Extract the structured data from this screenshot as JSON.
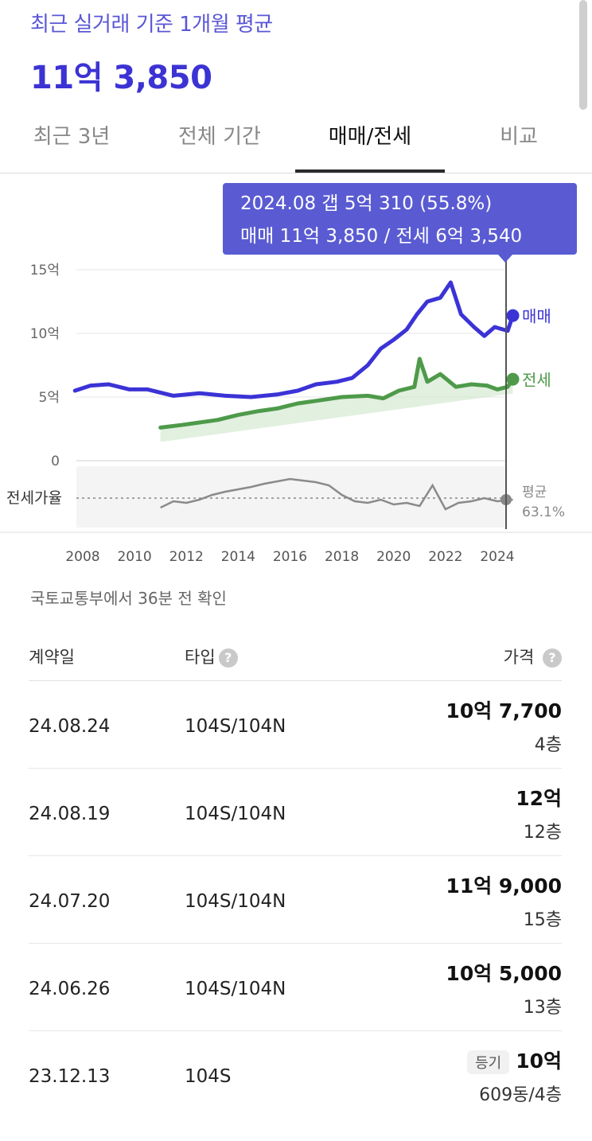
{
  "header": {
    "subtitle": "최근 실거래 기준 1개월 평균",
    "price": "11억 3,850"
  },
  "tabs": [
    {
      "label": "최근 3년",
      "active": false
    },
    {
      "label": "전체 기간",
      "active": false
    },
    {
      "label": "매매/전세",
      "active": true
    },
    {
      "label": "비교",
      "active": false
    }
  ],
  "tooltip": {
    "line1": "2024.08  갭 5억 310 (55.8%)",
    "line2": "매매 11억 3,850 / 전세 6억 3,540"
  },
  "colors": {
    "sale": "#3b33d6",
    "jeonse": "#4e9a4a",
    "ratio": "#8a8a8a",
    "tooltip": "#5a5bd2"
  },
  "chart_data": {
    "type": "line",
    "x_ticks": [
      "2008",
      "2010",
      "2012",
      "2014",
      "2016",
      "2018",
      "2020",
      "2022",
      "2024"
    ],
    "y_ticks": [
      "15억",
      "10억",
      "5억",
      "0"
    ],
    "ylim": [
      0,
      15
    ],
    "y_unit": "억",
    "ratio_label": "전세가율",
    "ratio_avg_label": "평균",
    "ratio_avg_value": "63.1%",
    "series": [
      {
        "name": "매매",
        "x": [
          2007.7,
          2008.3,
          2009.0,
          2009.8,
          2010.5,
          2011.5,
          2012.5,
          2013.5,
          2014.5,
          2015.5,
          2016.3,
          2017.0,
          2017.8,
          2018.4,
          2019.0,
          2019.5,
          2020.0,
          2020.5,
          2020.9,
          2021.3,
          2021.8,
          2022.2,
          2022.6,
          2023.1,
          2023.5,
          2023.9,
          2024.4,
          2024.6
        ],
        "values": [
          5.5,
          5.9,
          6.0,
          5.6,
          5.6,
          5.1,
          5.3,
          5.1,
          5.0,
          5.2,
          5.5,
          6.0,
          6.2,
          6.5,
          7.5,
          8.8,
          9.5,
          10.3,
          11.5,
          12.5,
          12.8,
          14.0,
          11.5,
          10.5,
          9.8,
          10.5,
          10.2,
          11.4
        ]
      },
      {
        "name": "전세",
        "x": [
          2011.0,
          2011.8,
          2012.5,
          2013.2,
          2014.0,
          2014.8,
          2015.5,
          2016.3,
          2017.0,
          2018.0,
          2019.0,
          2019.6,
          2020.2,
          2020.8,
          2021.0,
          2021.3,
          2021.8,
          2022.4,
          2023.0,
          2023.6,
          2024.0,
          2024.4,
          2024.6
        ],
        "values": [
          2.6,
          2.8,
          3.0,
          3.2,
          3.6,
          3.9,
          4.1,
          4.5,
          4.7,
          5.0,
          5.1,
          4.9,
          5.5,
          5.8,
          8.0,
          6.2,
          6.8,
          5.8,
          6.0,
          5.9,
          5.6,
          5.8,
          6.4
        ]
      }
    ],
    "labels": {
      "sale": "매매",
      "jeonse": "전세"
    }
  },
  "source": "국토교통부에서 36분 전 확인",
  "table": {
    "headers": {
      "date": "계약일",
      "type": "타입",
      "price": "가격"
    },
    "help_glyph": "?",
    "rows": [
      {
        "date": "24.08.24",
        "type": "104S/104N",
        "amount": "10억 7,700",
        "floor": "4층",
        "badge": ""
      },
      {
        "date": "24.08.19",
        "type": "104S/104N",
        "amount": "12억",
        "floor": "12층",
        "badge": ""
      },
      {
        "date": "24.07.20",
        "type": "104S/104N",
        "amount": "11억 9,000",
        "floor": "15층",
        "badge": ""
      },
      {
        "date": "24.06.26",
        "type": "104S/104N",
        "amount": "10억 5,000",
        "floor": "13층",
        "badge": ""
      },
      {
        "date": "23.12.13",
        "type": "104S",
        "amount": "10억",
        "floor": "609동/4층",
        "badge": "등기"
      }
    ]
  }
}
